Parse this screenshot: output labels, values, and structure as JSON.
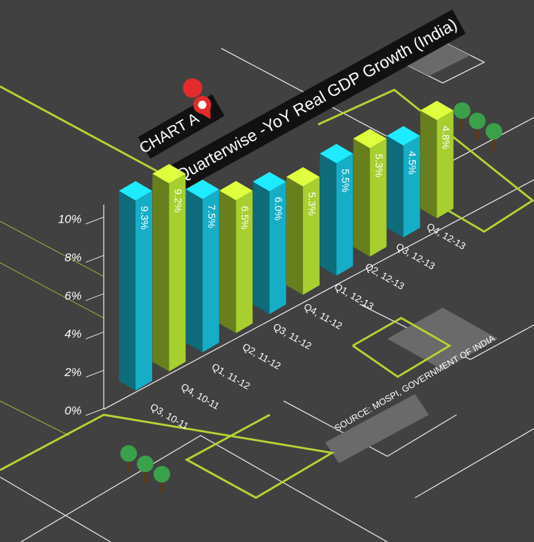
{
  "chart_data": {
    "type": "bar",
    "badge": "CHART A",
    "title": "Quarterwise -YoY Real GDP Growth (India)",
    "source": "SOURCE: MOSPI, GOVERNMENT OF INDIA",
    "categories": [
      "Q3, 10-11",
      "Q4, 10-11",
      "Q1, 11-12",
      "Q2, 11-12",
      "Q3, 11-12",
      "Q4, 11-12",
      "Q1, 12-13",
      "Q2, 12-13",
      "Q3, 12-13",
      "Q4, 12-13"
    ],
    "values": [
      9.3,
      9.2,
      7.5,
      6.5,
      6.0,
      5.3,
      5.5,
      5.3,
      4.5,
      4.8
    ],
    "value_labels": [
      "9.3%",
      "9.2%",
      "7.5%",
      "6.5%",
      "6.0%",
      "5.3%",
      "5.5%",
      "5.3%",
      "4.5%",
      "4.8%"
    ],
    "colors": [
      "#16aec6",
      "#a6cf2f",
      "#16aec6",
      "#a6cf2f",
      "#16aec6",
      "#a6cf2f",
      "#16aec6",
      "#a6cf2f",
      "#16aec6",
      "#a6cf2f"
    ],
    "ylim": [
      0,
      10
    ],
    "yticks": [
      {
        "value": 0,
        "label": "0%"
      },
      {
        "value": 2,
        "label": "2%"
      },
      {
        "value": 4,
        "label": "4%"
      },
      {
        "value": 6,
        "label": "6%"
      },
      {
        "value": 8,
        "label": "8%"
      },
      {
        "value": 10,
        "label": "10%"
      }
    ]
  }
}
